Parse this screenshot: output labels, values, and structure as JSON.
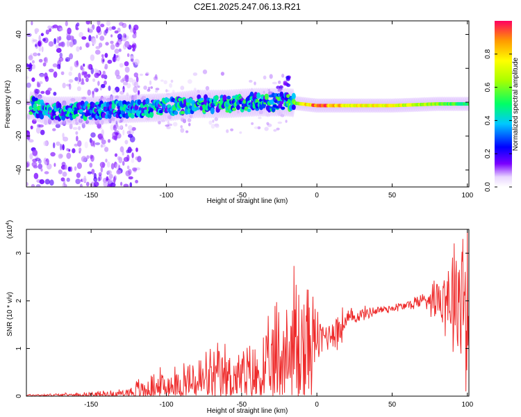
{
  "title": "C2E1.2025.247.06.13.R21",
  "chart_data": [
    {
      "type": "heatmap",
      "panel": "spectrogram",
      "xlabel": "Height of straight line (km)",
      "ylabel": "Frequency (Hz)",
      "xlim": [
        -193,
        101
      ],
      "ylim": [
        -50,
        48
      ],
      "xticks": [
        -150,
        -100,
        -50,
        0,
        50,
        100
      ],
      "yticks": [
        40,
        20,
        0,
        -20,
        -40
      ],
      "colorbar": {
        "label": "Normalized spectral amplitude",
        "range": [
          0,
          1
        ],
        "ticks": [
          0.0,
          0.2,
          0.4,
          0.6,
          0.8
        ],
        "tick_labels": [
          "0.0",
          "0.2",
          "0.4",
          "0.6",
          "0.8"
        ]
      },
      "description_points": [
        {
          "x": -190,
          "y": -2,
          "v": 0.5
        },
        {
          "x": -180,
          "y": -5,
          "v": 0.4
        },
        {
          "x": -150,
          "y": -5,
          "v": 0.45
        },
        {
          "x": -130,
          "y": -4,
          "v": 0.4
        },
        {
          "x": -100,
          "y": -3,
          "v": 0.45
        },
        {
          "x": -80,
          "y": -1,
          "v": 0.45
        },
        {
          "x": -60,
          "y": -1,
          "v": 0.5
        },
        {
          "x": -40,
          "y": 0,
          "v": 0.45
        },
        {
          "x": -20,
          "y": 0,
          "v": 0.5
        },
        {
          "x": 0,
          "y": -2,
          "v": 0.95
        },
        {
          "x": 20,
          "y": -2,
          "v": 0.8
        },
        {
          "x": 50,
          "y": -2,
          "v": 0.75
        },
        {
          "x": 80,
          "y": -1,
          "v": 0.6
        },
        {
          "x": 100,
          "y": -1,
          "v": 0.5
        }
      ],
      "ridge": [
        {
          "x": -35,
          "y": 2
        },
        {
          "x": -30,
          "y": 5
        },
        {
          "x": -25,
          "y": 8
        },
        {
          "x": -20,
          "y": 11
        },
        {
          "x": -18,
          "y": 14
        }
      ]
    },
    {
      "type": "line",
      "panel": "snr",
      "xlabel": "Height of straight line (km)",
      "ylabel": "SNR (10 * v/v)",
      "scale_label": "(x10",
      "scale_exp": "4",
      "scale_close": ")",
      "xlim": [
        -193,
        101
      ],
      "ylim": [
        0,
        3.5
      ],
      "xticks": [
        -150,
        -100,
        -50,
        0,
        50,
        100
      ],
      "yticks": [
        0,
        1,
        2,
        3
      ],
      "color": "#ee2a2a",
      "baseline": [
        [
          -193,
          0.02
        ],
        [
          -160,
          0.03
        ],
        [
          -130,
          0.05
        ],
        [
          -120,
          0.1
        ],
        [
          -110,
          0.15
        ],
        [
          -100,
          0.18
        ],
        [
          -90,
          0.22
        ],
        [
          -80,
          0.28
        ],
        [
          -70,
          0.33
        ],
        [
          -60,
          0.38
        ],
        [
          -50,
          0.38
        ],
        [
          -40,
          0.4
        ],
        [
          -30,
          0.5
        ],
        [
          -25,
          0.7
        ],
        [
          -20,
          0.85
        ],
        [
          -15,
          0.95
        ],
        [
          -10,
          1.0
        ],
        [
          -5,
          1.05
        ],
        [
          0,
          1.2
        ],
        [
          5,
          1.25
        ],
        [
          10,
          1.35
        ],
        [
          15,
          1.4
        ],
        [
          20,
          1.6
        ],
        [
          30,
          1.72
        ],
        [
          40,
          1.8
        ],
        [
          50,
          1.85
        ],
        [
          60,
          1.9
        ],
        [
          70,
          2.02
        ],
        [
          80,
          2.1
        ],
        [
          90,
          2.15
        ],
        [
          95,
          2.25
        ],
        [
          100,
          2.1
        ]
      ],
      "noise": [
        [
          -193,
          0.02
        ],
        [
          -160,
          0.03
        ],
        [
          -130,
          0.08
        ],
        [
          -120,
          0.2
        ],
        [
          -110,
          0.3
        ],
        [
          -100,
          0.35
        ],
        [
          -90,
          0.45
        ],
        [
          -80,
          0.5
        ],
        [
          -70,
          0.55
        ],
        [
          -60,
          0.6
        ],
        [
          -50,
          0.55
        ],
        [
          -40,
          0.6
        ],
        [
          -30,
          0.9
        ],
        [
          -25,
          1.4
        ],
        [
          -20,
          1.6
        ],
        [
          -15,
          1.8
        ],
        [
          -10,
          1.5
        ],
        [
          -5,
          1.2
        ],
        [
          0,
          0.5
        ],
        [
          5,
          0.3
        ],
        [
          10,
          0.3
        ],
        [
          15,
          0.4
        ],
        [
          20,
          0.2
        ],
        [
          30,
          0.12
        ],
        [
          40,
          0.1
        ],
        [
          50,
          0.08
        ],
        [
          60,
          0.1
        ],
        [
          70,
          0.15
        ],
        [
          80,
          0.4
        ],
        [
          90,
          1.0
        ],
        [
          95,
          1.3
        ],
        [
          100,
          1.7
        ]
      ],
      "spikes": [
        {
          "x": 97,
          "y": 3.3
        },
        {
          "x": 99,
          "y": 0.1
        },
        {
          "x": 100,
          "y": 3.45
        }
      ]
    }
  ]
}
